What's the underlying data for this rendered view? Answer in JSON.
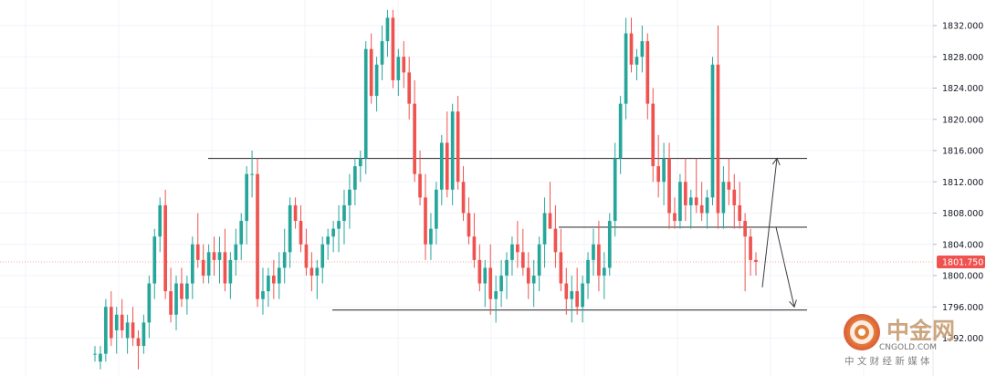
{
  "chart_data": {
    "type": "candlestick",
    "title": "",
    "xlabel": "",
    "ylabel": "",
    "ylim": [
      1740.2,
      1835.2
    ],
    "y_ticks": [
      "1832.000",
      "1828.000",
      "1824.000",
      "1820.000",
      "1816.000",
      "1812.000",
      "1808.000",
      "1804.000",
      "1800.000",
      "1796.000",
      "1792.000"
    ],
    "y_tick_values": [
      1832,
      1828,
      1824,
      1820,
      1816,
      1812,
      1808,
      1804,
      1800,
      1796,
      1792
    ],
    "last_price": "1801.750",
    "last_price_value": 1801.75,
    "grid": true,
    "colors": {
      "up": "#26a69a",
      "down": "#ef5350",
      "line": "#3c3c3c",
      "grid": "#f0f3fa",
      "price_badge": "#ef5350"
    },
    "candles_ohlc": [
      [
        1790,
        1791,
        1789,
        1790
      ],
      [
        1789,
        1791,
        1788,
        1790
      ],
      [
        1790,
        1797,
        1789,
        1796
      ],
      [
        1796,
        1798,
        1791,
        1792
      ],
      [
        1793,
        1796,
        1790,
        1795
      ],
      [
        1795,
        1797,
        1792,
        1793
      ],
      [
        1792,
        1795,
        1790,
        1794
      ],
      [
        1794,
        1796,
        1791,
        1792
      ],
      [
        1792,
        1793,
        1788,
        1791
      ],
      [
        1791,
        1795,
        1790,
        1794
      ],
      [
        1794,
        1800,
        1792,
        1799
      ],
      [
        1799,
        1806,
        1797,
        1805
      ],
      [
        1805,
        1810,
        1803,
        1809
      ],
      [
        1809,
        1811,
        1797,
        1798
      ],
      [
        1798,
        1801,
        1794,
        1795
      ],
      [
        1795,
        1800,
        1793,
        1799
      ],
      [
        1799,
        1801,
        1796,
        1797
      ],
      [
        1797,
        1800,
        1795,
        1799
      ],
      [
        1799,
        1805,
        1797,
        1804
      ],
      [
        1804,
        1808,
        1801,
        1802
      ],
      [
        1802,
        1804,
        1799,
        1800
      ],
      [
        1800,
        1804,
        1799,
        1803
      ],
      [
        1803,
        1805,
        1800,
        1802
      ],
      [
        1802,
        1805,
        1799,
        1803
      ],
      [
        1803,
        1806,
        1798,
        1799
      ],
      [
        1799,
        1803,
        1797,
        1802
      ],
      [
        1802,
        1806,
        1800,
        1804
      ],
      [
        1804,
        1808,
        1802,
        1807
      ],
      [
        1807,
        1814,
        1804,
        1813
      ],
      [
        1813,
        1816,
        1810,
        1813
      ],
      [
        1813,
        1815,
        1796,
        1797
      ],
      [
        1797,
        1801,
        1795,
        1798
      ],
      [
        1798,
        1801,
        1796,
        1800
      ],
      [
        1800,
        1802,
        1797,
        1799
      ],
      [
        1799,
        1803,
        1797,
        1801
      ],
      [
        1801,
        1806,
        1799,
        1803
      ],
      [
        1803,
        1810,
        1801,
        1809
      ],
      [
        1809,
        1810,
        1806,
        1807
      ],
      [
        1807,
        1809,
        1803,
        1804
      ],
      [
        1804,
        1806,
        1800,
        1801
      ],
      [
        1801,
        1803,
        1798,
        1800
      ],
      [
        1800,
        1802,
        1797,
        1801
      ],
      [
        1801,
        1805,
        1799,
        1804
      ],
      [
        1804,
        1806,
        1802,
        1805
      ],
      [
        1805,
        1807,
        1803,
        1806
      ],
      [
        1806,
        1809,
        1803,
        1807
      ],
      [
        1807,
        1811,
        1804,
        1809
      ],
      [
        1809,
        1813,
        1806,
        1811
      ],
      [
        1811,
        1815,
        1809,
        1814
      ],
      [
        1814,
        1816,
        1812,
        1815
      ],
      [
        1815,
        1830,
        1813,
        1829
      ],
      [
        1829,
        1831,
        1822,
        1823
      ],
      [
        1823,
        1828,
        1821,
        1827
      ],
      [
        1827,
        1832,
        1825,
        1830
      ],
      [
        1830,
        1834,
        1828,
        1833
      ],
      [
        1833,
        1834,
        1824,
        1825
      ],
      [
        1825,
        1829,
        1823,
        1828
      ],
      [
        1828,
        1830,
        1824,
        1826
      ],
      [
        1826,
        1828,
        1820,
        1822
      ],
      [
        1822,
        1825,
        1812,
        1813
      ],
      [
        1813,
        1816,
        1809,
        1810
      ],
      [
        1810,
        1813,
        1802,
        1804
      ],
      [
        1804,
        1808,
        1802,
        1806
      ],
      [
        1806,
        1812,
        1804,
        1811
      ],
      [
        1811,
        1818,
        1809,
        1817
      ],
      [
        1817,
        1821,
        1810,
        1811
      ],
      [
        1811,
        1822,
        1809,
        1821
      ],
      [
        1821,
        1823,
        1811,
        1812
      ],
      [
        1812,
        1814,
        1807,
        1808
      ],
      [
        1808,
        1810,
        1804,
        1805
      ],
      [
        1805,
        1808,
        1801,
        1802
      ],
      [
        1802,
        1804,
        1798,
        1799
      ],
      [
        1799,
        1802,
        1796,
        1801
      ],
      [
        1801,
        1804,
        1795,
        1797
      ],
      [
        1797,
        1800,
        1794,
        1798
      ],
      [
        1798,
        1802,
        1796,
        1800
      ],
      [
        1800,
        1803,
        1797,
        1802
      ],
      [
        1802,
        1805,
        1800,
        1804
      ],
      [
        1804,
        1807,
        1801,
        1803
      ],
      [
        1803,
        1806,
        1800,
        1801
      ],
      [
        1801,
        1803,
        1797,
        1799
      ],
      [
        1799,
        1802,
        1796,
        1800
      ],
      [
        1800,
        1805,
        1798,
        1804
      ],
      [
        1804,
        1810,
        1801,
        1808
      ],
      [
        1808,
        1812,
        1806,
        1806
      ],
      [
        1806,
        1809,
        1801,
        1803
      ],
      [
        1803,
        1806,
        1798,
        1799
      ],
      [
        1799,
        1801,
        1795,
        1797
      ],
      [
        1797,
        1800,
        1794,
        1798
      ],
      [
        1798,
        1801,
        1795,
        1796
      ],
      [
        1796,
        1800,
        1794,
        1799
      ],
      [
        1799,
        1803,
        1797,
        1802
      ],
      [
        1802,
        1806,
        1800,
        1804
      ],
      [
        1804,
        1807,
        1798,
        1800
      ],
      [
        1800,
        1803,
        1797,
        1801
      ],
      [
        1801,
        1808,
        1800,
        1807
      ],
      [
        1807,
        1817,
        1805,
        1815
      ],
      [
        1815,
        1823,
        1813,
        1822
      ],
      [
        1822,
        1833,
        1820,
        1831
      ],
      [
        1831,
        1833,
        1826,
        1827
      ],
      [
        1827,
        1829,
        1825,
        1828
      ],
      [
        1828,
        1832,
        1826,
        1830
      ],
      [
        1830,
        1831,
        1820,
        1822
      ],
      [
        1822,
        1824,
        1812,
        1814
      ],
      [
        1814,
        1818,
        1810,
        1812
      ],
      [
        1812,
        1817,
        1809,
        1815
      ],
      [
        1815,
        1817,
        1806,
        1808
      ],
      [
        1808,
        1810,
        1806,
        1807
      ],
      [
        1807,
        1813,
        1806,
        1812
      ],
      [
        1812,
        1815,
        1807,
        1809
      ],
      [
        1809,
        1811,
        1806,
        1810
      ],
      [
        1810,
        1815,
        1808,
        1809
      ],
      [
        1809,
        1812,
        1807,
        1808
      ],
      [
        1808,
        1811,
        1806,
        1810
      ],
      [
        1810,
        1828,
        1809,
        1827
      ],
      [
        1827,
        1832,
        1806,
        1808
      ],
      [
        1808,
        1814,
        1806,
        1812
      ],
      [
        1812,
        1815,
        1809,
        1811
      ],
      [
        1811,
        1813,
        1806,
        1809
      ],
      [
        1809,
        1812,
        1806,
        1807
      ],
      [
        1807,
        1808,
        1798,
        1805
      ],
      [
        1805,
        1806,
        1800,
        1802
      ],
      [
        1802,
        1803,
        1800,
        1801.75
      ]
    ],
    "annotations": [
      {
        "type": "horizontal_line",
        "price": 1815
      },
      {
        "type": "horizontal_line",
        "price": 1806.2
      },
      {
        "type": "horizontal_line",
        "price": 1795.6
      },
      {
        "type": "arrow",
        "path": [
          1798.5,
          1815
        ]
      },
      {
        "type": "arrow",
        "path": [
          1806.2,
          1796
        ]
      }
    ]
  },
  "watermark": {
    "brand_cn": "中金网",
    "brand_en": "CNGOLD.COM",
    "subtitle": "中 文 财 经 新 媒 体"
  }
}
